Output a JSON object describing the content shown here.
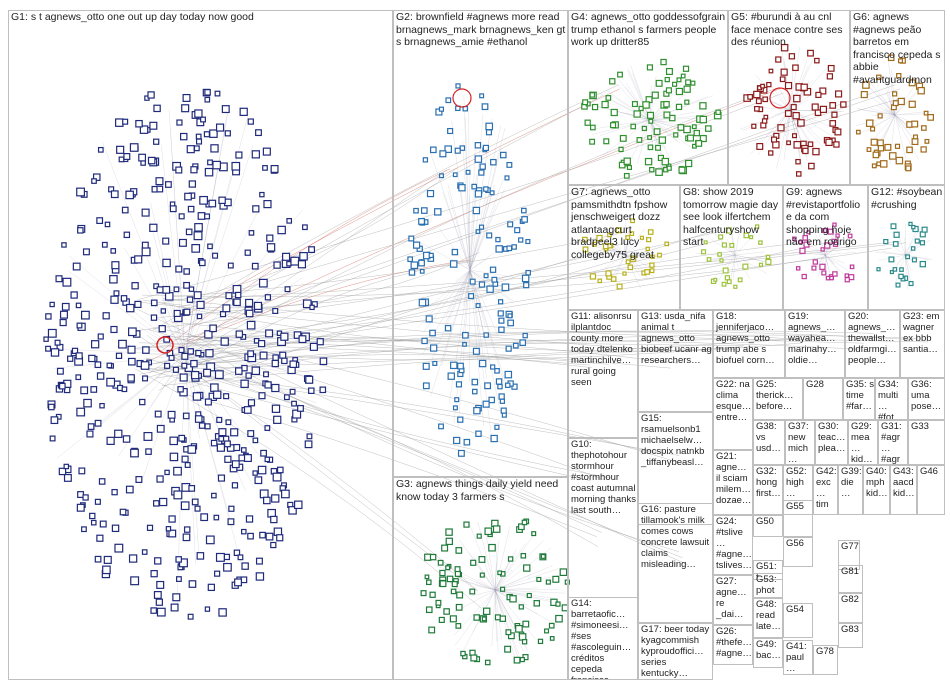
{
  "groups": [
    {
      "id": "G1",
      "label": "G1: s t agnews_otto one out up day today now good"
    },
    {
      "id": "G2",
      "label": "G2: brownfield #agnews more read brnagnews_mark brnagnews_ken gt s brnagnews_amie #ethanol"
    },
    {
      "id": "G3",
      "label": "G3: agnews things daily yield need know today 3 farmers s"
    },
    {
      "id": "G4",
      "label": "G4: agnews_otto goddessofgrain trump ethanol s farmers people work up dritter85"
    },
    {
      "id": "G5",
      "label": "G5: #burundi à au cnl face menace contre ses des réunion"
    },
    {
      "id": "G6",
      "label": "G6: agnews #agnews peão barretos em francisco cepeda s abbie #avantguardmon"
    },
    {
      "id": "G7",
      "label": "G7: agnews_otto pamsmithdtn fpshow jenschweigert dozz atlantaagcurt bradpeel3 lucy collegeby75 great"
    },
    {
      "id": "G8",
      "label": "G8: show 2019 tomorrow magie day see look ilfertchem halfcenturyshow start"
    },
    {
      "id": "G9",
      "label": "G9: agnews #revistaportfolio e da com shopping hoje não em rodrigo"
    },
    {
      "id": "G12",
      "label": "G12: #soybean #crushing"
    },
    {
      "id": "G11",
      "label": "G11: alisonrsu ilplantdoc county more today dtelenko martinchilve… rural going seen"
    },
    {
      "id": "G13",
      "label": "G13: usda_nifa animal t agnews_otto biobeef ucanr ag researchers…"
    },
    {
      "id": "G18",
      "label": "G18: jenniferjaco… agnews_otto trump abe s biofuel corn…"
    },
    {
      "id": "G19",
      "label": "G19: agnews_… wayahea… marinahy… oldie…"
    },
    {
      "id": "G20",
      "label": "G20: agnews_… thewallst… oldfarmgi… people…"
    },
    {
      "id": "G23",
      "label": "G23: em wagner ex bbb santia…"
    },
    {
      "id": "G15",
      "label": "G15: rsamuelsonb1 michaelselw… docspix natnkb _tiffanybeasl…"
    },
    {
      "id": "G22",
      "label": "G22: na clima esque… entre…"
    },
    {
      "id": "G25",
      "label": "G25: therick… before…"
    },
    {
      "id": "G28",
      "label": "G28"
    },
    {
      "id": "G35",
      "label": "G35: s time #far…"
    },
    {
      "id": "G34",
      "label": "G34: multi… #fot…"
    },
    {
      "id": "G36",
      "label": "G36: uma pose…"
    },
    {
      "id": "G38",
      "label": "G38: vs usd…"
    },
    {
      "id": "G37",
      "label": "G37: new mich… plea…"
    },
    {
      "id": "G30",
      "label": "G30: teac… plea…"
    },
    {
      "id": "G29",
      "label": "G29: mea… kid…"
    },
    {
      "id": "G31",
      "label": "G31: #agr… #agr…"
    },
    {
      "id": "G33",
      "label": "G33"
    },
    {
      "id": "G10",
      "label": "G10: thephotohour stormhour #stormhour coast autumnal morning thanks last south…"
    },
    {
      "id": "G21",
      "label": "G21: agne… il sciam milem… dozae…"
    },
    {
      "id": "G32",
      "label": "G32: hong first…"
    },
    {
      "id": "G52",
      "label": "G52: high…"
    },
    {
      "id": "G42",
      "label": "G42: exc… tim…"
    },
    {
      "id": "G39",
      "label": "G39: die…"
    },
    {
      "id": "G40",
      "label": "G40: mph kid…"
    },
    {
      "id": "G43",
      "label": "G43: aacd kid…"
    },
    {
      "id": "G46",
      "label": "G46"
    },
    {
      "id": "G16",
      "label": "G16: pasture tillamook's milk comes cows concrete lawsuit claims misleading…"
    },
    {
      "id": "G24",
      "label": "G24: #tslive… #agne… tslives…"
    },
    {
      "id": "G50",
      "label": "G50"
    },
    {
      "id": "G55",
      "label": "G55"
    },
    {
      "id": "G56",
      "label": "G56"
    },
    {
      "id": "G51",
      "label": "G51: t…"
    },
    {
      "id": "G14",
      "label": "G14: barretaofic… #simoneesi… #ses #ascoleguin… créditos cepeda francisco…"
    },
    {
      "id": "G17",
      "label": "G17: beer today kyagcommish kyproudoffici… series kentucky…"
    },
    {
      "id": "G27",
      "label": "G27: agne… re _dai…"
    },
    {
      "id": "G53",
      "label": "G53: phot…"
    },
    {
      "id": "G48",
      "label": "G48: read late…"
    },
    {
      "id": "G54",
      "label": "G54"
    },
    {
      "id": "G26",
      "label": "G26: #thefe… #agne…"
    },
    {
      "id": "G49",
      "label": "G49: bac…"
    },
    {
      "id": "G41",
      "label": "G41: paul…"
    },
    {
      "id": "G78",
      "label": "G78"
    },
    {
      "id": "G77",
      "label": "G77"
    },
    {
      "id": "G81",
      "label": "G81"
    },
    {
      "id": "G82",
      "label": "G82"
    },
    {
      "id": "G83",
      "label": "G83"
    }
  ],
  "colors": {
    "G1": "#1f2a7a",
    "G2": "#2a6fb0",
    "G3": "#1f7a3a",
    "G4": "#2f8f2f",
    "G5": "#8b1a1a",
    "G6": "#a06a1a",
    "G7": "#b8b01a",
    "G8": "#9cc23a",
    "G9": "#c03a9a",
    "G12": "#2a8a8a",
    "edge": "#8a8a8a",
    "edge_red": "#c0392b",
    "border": "#bfbfbf"
  }
}
